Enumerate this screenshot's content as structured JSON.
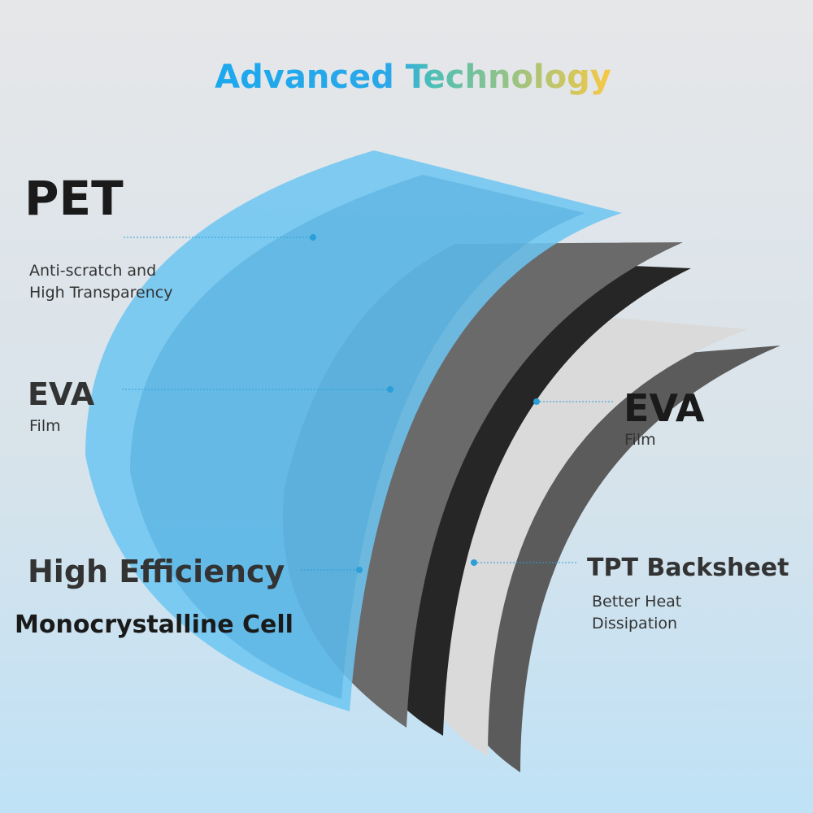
{
  "title": "Advanced Technology",
  "layers": [
    {
      "label": "PET",
      "description": [
        "Anti-scratch and",
        "High Transparency"
      ]
    },
    {
      "label": "EVA",
      "description": [
        "Film"
      ]
    },
    {
      "label": "High Efficiency",
      "description": [
        "Monocrystalline Cell"
      ]
    },
    {
      "label": "EVA",
      "description": [
        "Film"
      ]
    },
    {
      "label": "TPT Backsheet",
      "description": [
        "Better Heat",
        "Dissipation"
      ]
    }
  ]
}
